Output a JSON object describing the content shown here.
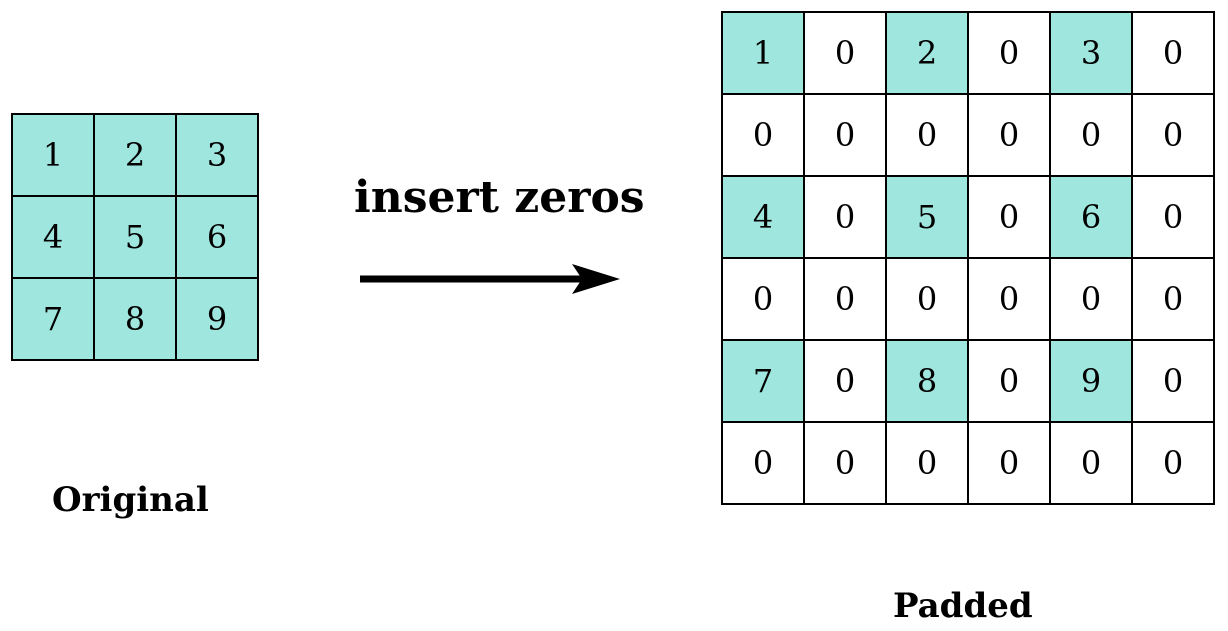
{
  "original": {
    "label": "Original",
    "cells": [
      "1",
      "2",
      "3",
      "4",
      "5",
      "6",
      "7",
      "8",
      "9"
    ]
  },
  "operation": {
    "label": "insert zeros"
  },
  "padded": {
    "label": "Padded",
    "cells": [
      [
        "1",
        "0",
        "2",
        "0",
        "3",
        "0"
      ],
      [
        "0",
        "0",
        "0",
        "0",
        "0",
        "0"
      ],
      [
        "4",
        "0",
        "5",
        "0",
        "6",
        "0"
      ],
      [
        "0",
        "0",
        "0",
        "0",
        "0",
        "0"
      ],
      [
        "7",
        "0",
        "8",
        "0",
        "9",
        "0"
      ],
      [
        "0",
        "0",
        "0",
        "0",
        "0",
        "0"
      ]
    ]
  },
  "colors": {
    "highlight": "#9fe6df",
    "background": "#ffffff",
    "line": "#000000"
  }
}
